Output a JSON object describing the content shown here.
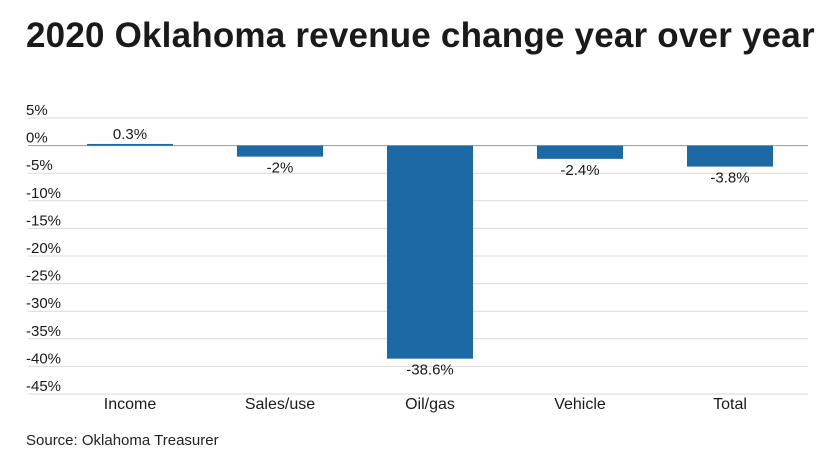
{
  "title": "2020 Oklahoma revenue change year over year",
  "source": "Source: Oklahoma Treasurer",
  "colors": {
    "bar": "#1c69a6",
    "grid": "#d9d9d9",
    "zero_line": "#999999"
  },
  "chart_data": {
    "type": "bar",
    "categories": [
      "Income",
      "Sales/use",
      "Oil/gas",
      "Vehicle",
      "Total"
    ],
    "values": [
      0.3,
      -2,
      -38.6,
      -2.4,
      -3.8
    ],
    "value_labels": [
      "0.3%",
      "-2%",
      "-38.6%",
      "-2.4%",
      "-3.8%"
    ],
    "y_ticks": [
      5,
      0,
      -5,
      -10,
      -15,
      -20,
      -25,
      -30,
      -35,
      -40,
      -45
    ],
    "y_tick_labels": [
      "5%",
      "0%",
      "-5%",
      "-10%",
      "-15%",
      "-20%",
      "-25%",
      "-30%",
      "-35%",
      "-40%",
      "-45%"
    ],
    "ylim": [
      -45,
      5
    ],
    "grid": true,
    "xlabel": "",
    "ylabel": ""
  }
}
